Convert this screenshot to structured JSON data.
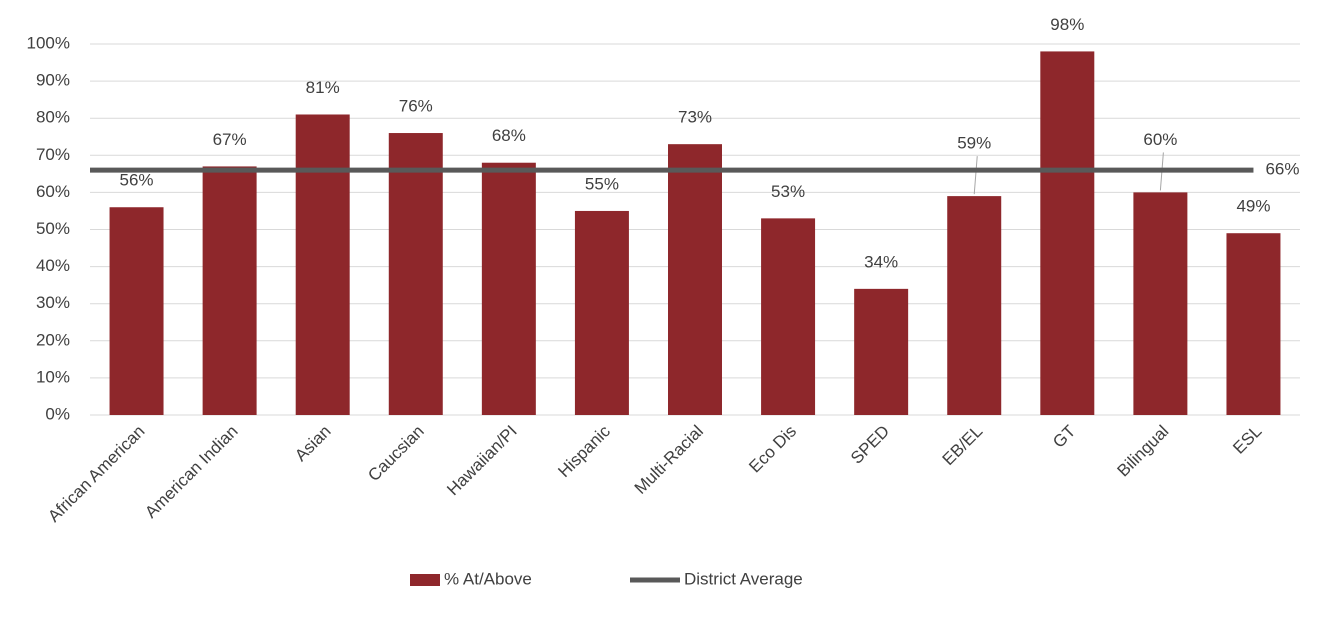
{
  "chart_data": {
    "type": "bar",
    "categories": [
      "African American",
      "American Indian",
      "Asian",
      "Caucsian",
      "Hawaiian/PI",
      "Hispanic",
      "Multi-Racial",
      "Eco Dis",
      "SPED",
      "EB/EL",
      "GT",
      "Bilingual",
      "ESL"
    ],
    "series": [
      {
        "name": "% At/Above",
        "color": "#8e272b",
        "values": [
          56,
          67,
          81,
          76,
          68,
          55,
          73,
          53,
          34,
          59,
          98,
          60,
          49
        ],
        "value_labels": [
          "56%",
          "67%",
          "81%",
          "76%",
          "68%",
          "55%",
          "73%",
          "53%",
          "34%",
          "59%",
          "98%",
          "60%",
          "49%"
        ]
      }
    ],
    "average": {
      "name": "District Average",
      "color": "#595959",
      "value": 66,
      "value_label": "66%"
    },
    "ylim": [
      0,
      100
    ],
    "yticks": [
      {
        "value": 0,
        "label": "0%"
      },
      {
        "value": 10,
        "label": "10%"
      },
      {
        "value": 20,
        "label": "20%"
      },
      {
        "value": 30,
        "label": "30%"
      },
      {
        "value": 40,
        "label": "40%"
      },
      {
        "value": 50,
        "label": "50%"
      },
      {
        "value": 60,
        "label": "60%"
      },
      {
        "value": 70,
        "label": "70%"
      },
      {
        "value": 80,
        "label": "80%"
      },
      {
        "value": 90,
        "label": "90%"
      },
      {
        "value": 100,
        "label": "100%"
      }
    ],
    "grid": true
  }
}
